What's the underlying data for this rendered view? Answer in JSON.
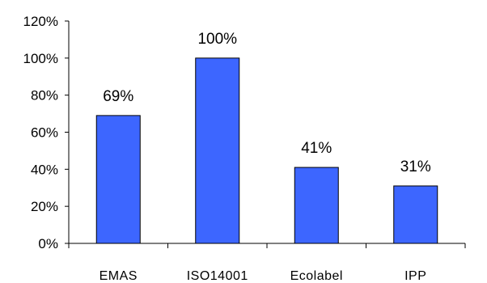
{
  "chart_data": {
    "type": "bar",
    "categories": [
      "EMAS",
      "ISO14001",
      "Ecolabel",
      "IPP"
    ],
    "values": [
      69,
      100,
      41,
      31
    ],
    "data_labels": [
      "69%",
      "100%",
      "41%",
      "31%"
    ],
    "y_ticks": [
      0,
      20,
      40,
      60,
      80,
      100,
      120
    ],
    "y_tick_labels": [
      "0%",
      "20%",
      "40%",
      "60%",
      "80%",
      "100%",
      "120%"
    ],
    "ylim": [
      0,
      120
    ],
    "grid": false,
    "legend": "none",
    "bar_color": "#3D66FF",
    "bar_outline_color": "#000000"
  }
}
